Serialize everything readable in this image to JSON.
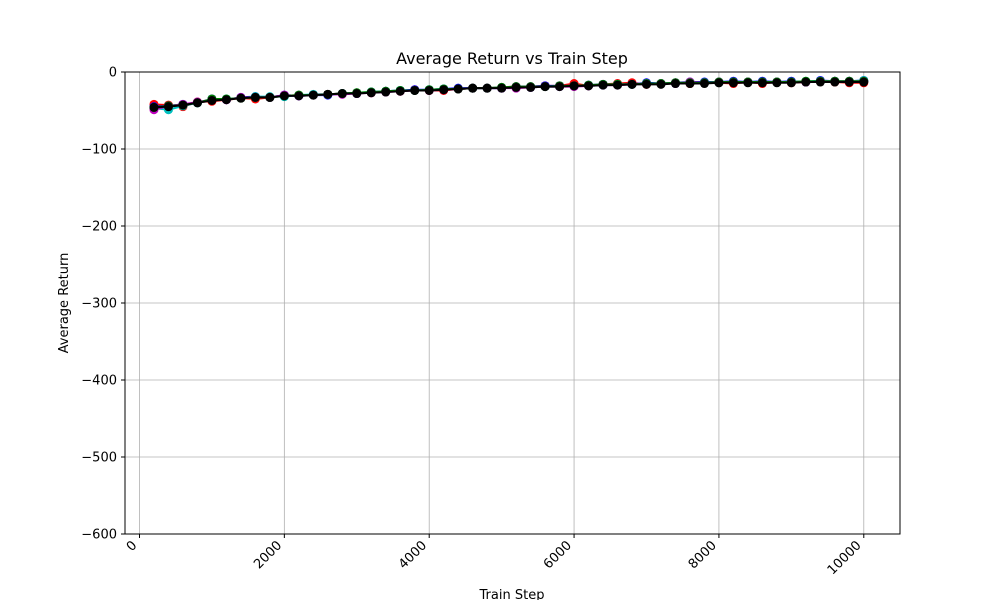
{
  "chart_data": {
    "type": "line",
    "title": "Average Return vs Train Step",
    "xlabel": "Train Step",
    "ylabel": "Average Return",
    "xlim": [
      -200,
      10500
    ],
    "ylim": [
      -600,
      0
    ],
    "xticks": [
      0,
      2000,
      4000,
      6000,
      8000,
      10000
    ],
    "yticks": [
      0,
      -100,
      -200,
      -300,
      -400,
      -500,
      -600
    ],
    "xtick_labels": [
      "0",
      "2000",
      "4000",
      "6000",
      "8000",
      "10000"
    ],
    "ytick_labels": [
      "0",
      "−100",
      "−200",
      "−300",
      "−400",
      "−500",
      "−600"
    ],
    "grid": true,
    "x": [
      200,
      400,
      600,
      800,
      1000,
      1200,
      1400,
      1600,
      1800,
      2000,
      2200,
      2400,
      2600,
      2800,
      3000,
      3200,
      3400,
      3600,
      3800,
      4000,
      4200,
      4400,
      4600,
      4800,
      5000,
      5200,
      5400,
      5600,
      5800,
      6000,
      6200,
      6400,
      6600,
      6800,
      7000,
      7200,
      7400,
      7600,
      7800,
      8000,
      8200,
      8400,
      8600,
      8800,
      9000,
      9200,
      9400,
      9600,
      9800,
      10000
    ],
    "series": [
      {
        "color": "#ff0000",
        "values": [
          -42,
          -43,
          -45,
          -39,
          -38,
          -36,
          -34,
          -35,
          -33,
          -31,
          -30,
          -30,
          -29,
          -28,
          -27,
          -27,
          -25,
          -25,
          -23,
          -24,
          -24,
          -22,
          -21,
          -21,
          -20,
          -19,
          -19,
          -18,
          -18,
          -15,
          -18,
          -16,
          -15,
          -14,
          -16,
          -15,
          -14,
          -15,
          -14,
          -14,
          -15,
          -13,
          -15,
          -13,
          -14,
          -13,
          -12,
          -13,
          -14,
          -14
        ]
      },
      {
        "color": "#0000ff",
        "values": [
          -45,
          -44,
          -42,
          -40,
          -35,
          -36,
          -33,
          -32,
          -33,
          -30,
          -31,
          -30,
          -30,
          -28,
          -28,
          -26,
          -25,
          -24,
          -23,
          -23,
          -22,
          -21,
          -21,
          -21,
          -21,
          -19,
          -19,
          -18,
          -18,
          -18,
          -17,
          -16,
          -16,
          -16,
          -14,
          -15,
          -14,
          -13,
          -13,
          -13,
          -12,
          -13,
          -12,
          -13,
          -12,
          -13,
          -11,
          -12,
          -12,
          -11
        ]
      },
      {
        "color": "#00bfbf",
        "values": [
          -47,
          -49,
          -44,
          -40,
          -36,
          -35,
          -34,
          -32,
          -32,
          -32,
          -30,
          -29,
          -29,
          -28,
          -27,
          -26,
          -25,
          -24,
          -24,
          -23,
          -22,
          -22,
          -21,
          -21,
          -20,
          -20,
          -20,
          -19,
          -19,
          -18,
          -18,
          -17,
          -16,
          -16,
          -15,
          -15,
          -15,
          -14,
          -14,
          -14,
          -13,
          -13,
          -13,
          -13,
          -13,
          -12,
          -12,
          -12,
          -12,
          -11
        ]
      },
      {
        "color": "#bf00bf",
        "values": [
          -49,
          -44,
          -42,
          -39,
          -36,
          -36,
          -33,
          -33,
          -33,
          -30,
          -31,
          -30,
          -29,
          -29,
          -28,
          -27,
          -26,
          -25,
          -24,
          -24,
          -23,
          -22,
          -21,
          -21,
          -21,
          -21,
          -20,
          -19,
          -19,
          -19,
          -18,
          -17,
          -17,
          -16,
          -15,
          -15,
          -15,
          -13,
          -14,
          -13,
          -13,
          -13,
          -13,
          -13,
          -13,
          -13,
          -12,
          -12,
          -12,
          -12
        ]
      },
      {
        "color": "#008000",
        "values": [
          -46,
          -44,
          -43,
          -40,
          -35,
          -35,
          -34,
          -33,
          -33,
          -31,
          -30,
          -30,
          -29,
          -28,
          -27,
          -26,
          -25,
          -24,
          -24,
          -23,
          -22,
          -22,
          -21,
          -21,
          -20,
          -19,
          -19,
          -19,
          -18,
          -18,
          -17,
          -16,
          -16,
          -16,
          -15,
          -15,
          -14,
          -14,
          -14,
          -13,
          -13,
          -13,
          -13,
          -13,
          -13,
          -12,
          -12,
          -12,
          -12,
          -12
        ]
      },
      {
        "color": "#000000",
        "values": [
          -46,
          -45,
          -43,
          -40,
          -37,
          -36,
          -34,
          -33,
          -33,
          -31,
          -31,
          -30,
          -29,
          -28,
          -28,
          -27,
          -26,
          -25,
          -24,
          -24,
          -23,
          -22,
          -21,
          -21,
          -21,
          -20,
          -20,
          -19,
          -19,
          -18,
          -18,
          -17,
          -17,
          -16,
          -16,
          -16,
          -15,
          -15,
          -15,
          -14,
          -14,
          -14,
          -14,
          -14,
          -14,
          -13,
          -13,
          -13,
          -13,
          -13
        ]
      }
    ]
  }
}
